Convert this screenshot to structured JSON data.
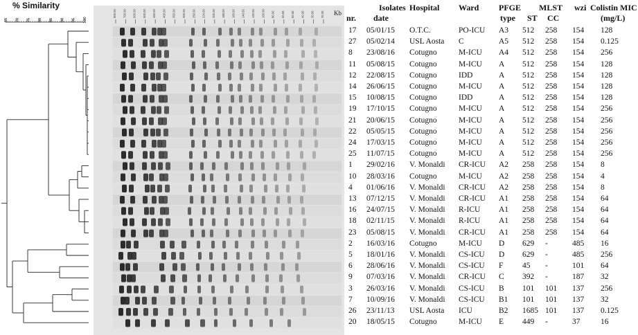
{
  "similarity_title": "% Similarity",
  "scale_ticks": [
    "65",
    "70",
    "75",
    "80",
    "85",
    "90",
    "95",
    "100"
  ],
  "gel": {
    "kb_label": "Kb",
    "ladder_labels": [
      "900.00",
      "700.00",
      "600.00",
      "500.00",
      "450.00",
      "400.00",
      "350.00",
      "300.00",
      "250.00",
      "224.00",
      "200.00",
      "180.00",
      "160.00",
      "140.00",
      "120.00",
      "100.00",
      "80.00",
      "60.00",
      "50.00",
      "40.00",
      "30.00",
      "20.00"
    ]
  },
  "headers": {
    "isolates": "Isolates",
    "nr": "nr.",
    "date": "date",
    "hospital": "Hospital",
    "ward": "Ward",
    "pfge_line1": "PFGE",
    "pfge_line2": "type",
    "mlst": "MLST",
    "st": "ST",
    "cc": "CC",
    "wzi": "wzi",
    "colistin_line1": "Colistin MIC",
    "colistin_line2": "(mg/L)"
  },
  "rows": [
    {
      "nr": "17",
      "date": "05/01/15",
      "hospital": "O.T.C.",
      "ward": "PO-ICU",
      "pfge": "A3",
      "st": "512",
      "cc": "258",
      "wzi": "154",
      "mic": "128"
    },
    {
      "nr": "27",
      "date": "05/02/14",
      "hospital": "USL Aosta",
      "ward": "C",
      "pfge": "A5",
      "st": "512",
      "cc": "258",
      "wzi": "154",
      "mic": "0.125"
    },
    {
      "nr": "8",
      "date": "23/08/16",
      "hospital": "Cotugno",
      "ward": "M-ICU",
      "pfge": "A4",
      "st": "512",
      "cc": "258",
      "wzi": "154",
      "mic": "256"
    },
    {
      "nr": "11",
      "date": "05/08/15",
      "hospital": "Cotugno",
      "ward": "M-ICU",
      "pfge": "A",
      "st": "512",
      "cc": "258",
      "wzi": "154",
      "mic": "128"
    },
    {
      "nr": "12",
      "date": "22/08/15",
      "hospital": "Cotugno",
      "ward": "IDD",
      "pfge": "A",
      "st": "512",
      "cc": "258",
      "wzi": "154",
      "mic": "128"
    },
    {
      "nr": "14",
      "date": "26/06/15",
      "hospital": "Cotugno",
      "ward": "M-ICU",
      "pfge": "A",
      "st": "512",
      "cc": "258",
      "wzi": "154",
      "mic": "128"
    },
    {
      "nr": "15",
      "date": "10/08/15",
      "hospital": "Cotugno",
      "ward": "IDD",
      "pfge": "A",
      "st": "512",
      "cc": "258",
      "wzi": "154",
      "mic": "128"
    },
    {
      "nr": "19",
      "date": "17/10/15",
      "hospital": "Cotugno",
      "ward": "M-ICU",
      "pfge": "A",
      "st": "512",
      "cc": "258",
      "wzi": "154",
      "mic": "256"
    },
    {
      "nr": "21",
      "date": "20/06/15",
      "hospital": "Cotugno",
      "ward": "M-ICU",
      "pfge": "A",
      "st": "512",
      "cc": "258",
      "wzi": "154",
      "mic": "256"
    },
    {
      "nr": "22",
      "date": "05/05/15",
      "hospital": "Cotugno",
      "ward": "M-ICU",
      "pfge": "A",
      "st": "512",
      "cc": "258",
      "wzi": "154",
      "mic": "256"
    },
    {
      "nr": "24",
      "date": "17/03/15",
      "hospital": "Cotugno",
      "ward": "M-ICU",
      "pfge": "A",
      "st": "512",
      "cc": "258",
      "wzi": "154",
      "mic": "256"
    },
    {
      "nr": "25",
      "date": "11/07/15",
      "hospital": "Cotugno",
      "ward": "M-ICU",
      "pfge": "A",
      "st": "512",
      "cc": "258",
      "wzi": "154",
      "mic": "256"
    },
    {
      "nr": "1",
      "date": "29/02/16",
      "hospital": "V. Monaldi",
      "ward": "CR-ICU",
      "pfge": "A2",
      "st": "258",
      "cc": "258",
      "wzi": "154",
      "mic": "8"
    },
    {
      "nr": "10",
      "date": "28/03/16",
      "hospital": "Cotugno",
      "ward": "M-ICU",
      "pfge": "A2",
      "st": "258",
      "cc": "258",
      "wzi": "154",
      "mic": "4"
    },
    {
      "nr": "4",
      "date": "01/06/16",
      "hospital": "V. Monaldi",
      "ward": "CR-ICU",
      "pfge": "A2",
      "st": "258",
      "cc": "258",
      "wzi": "154",
      "mic": "8"
    },
    {
      "nr": "13",
      "date": "07/12/15",
      "hospital": "V. Monaldi",
      "ward": "CR-ICU",
      "pfge": "A1",
      "st": "258",
      "cc": "258",
      "wzi": "154",
      "mic": "64"
    },
    {
      "nr": "16",
      "date": "24/07/15",
      "hospital": "V. Monaldi",
      "ward": "R-ICU",
      "pfge": "A1",
      "st": "258",
      "cc": "258",
      "wzi": "154",
      "mic": "64"
    },
    {
      "nr": "18",
      "date": "02/11/15",
      "hospital": "V. Monaldi",
      "ward": "R-ICU",
      "pfge": "A1",
      "st": "258",
      "cc": "258",
      "wzi": "154",
      "mic": "64"
    },
    {
      "nr": "23",
      "date": "05/08/15",
      "hospital": "V. Monaldi",
      "ward": "CR-ICU",
      "pfge": "A1",
      "st": "258",
      "cc": "258",
      "wzi": "154",
      "mic": "64"
    },
    {
      "nr": "2",
      "date": "16/03/16",
      "hospital": "Cotugno",
      "ward": "M-ICU",
      "pfge": "D",
      "st": "629",
      "cc": "-",
      "wzi": "485",
      "mic": "16"
    },
    {
      "nr": "5",
      "date": "18/01/16",
      "hospital": "V. Monaldi",
      "ward": "CS-ICU",
      "pfge": "D",
      "st": "629",
      "cc": "-",
      "wzi": "485",
      "mic": "256"
    },
    {
      "nr": "6",
      "date": "28/06/16",
      "hospital": "V. Monaldi",
      "ward": "CS-ICU",
      "pfge": "F",
      "st": "45",
      "cc": "-",
      "wzi": "101",
      "mic": "64"
    },
    {
      "nr": "9",
      "date": "07/03/16",
      "hospital": "V. Monaldi",
      "ward": "CR-ICU",
      "pfge": "C",
      "st": "392",
      "cc": "-",
      "wzi": "187",
      "mic": "32"
    },
    {
      "nr": "3",
      "date": "26/03/16",
      "hospital": "V. Monaldi",
      "ward": "CS-ICU",
      "pfge": "B",
      "st": "101",
      "cc": "101",
      "wzi": "137",
      "mic": "256"
    },
    {
      "nr": "7",
      "date": "10/09/16",
      "hospital": "V. Monaldi",
      "ward": "CS-ICU",
      "pfge": "B1",
      "st": "101",
      "cc": "101",
      "wzi": "137",
      "mic": "32"
    },
    {
      "nr": "26",
      "date": "23/11/13",
      "hospital": "USL Aosta",
      "ward": "ICU",
      "pfge": "B2",
      "st": "1685",
      "cc": "101",
      "wzi": "137",
      "mic": "0.125"
    },
    {
      "nr": "20",
      "date": "18/05/15",
      "hospital": "Cotugno",
      "ward": "M-ICU",
      "pfge": "E",
      "st": "449",
      "cc": "-",
      "wzi": "37",
      "mic": "16"
    }
  ]
}
